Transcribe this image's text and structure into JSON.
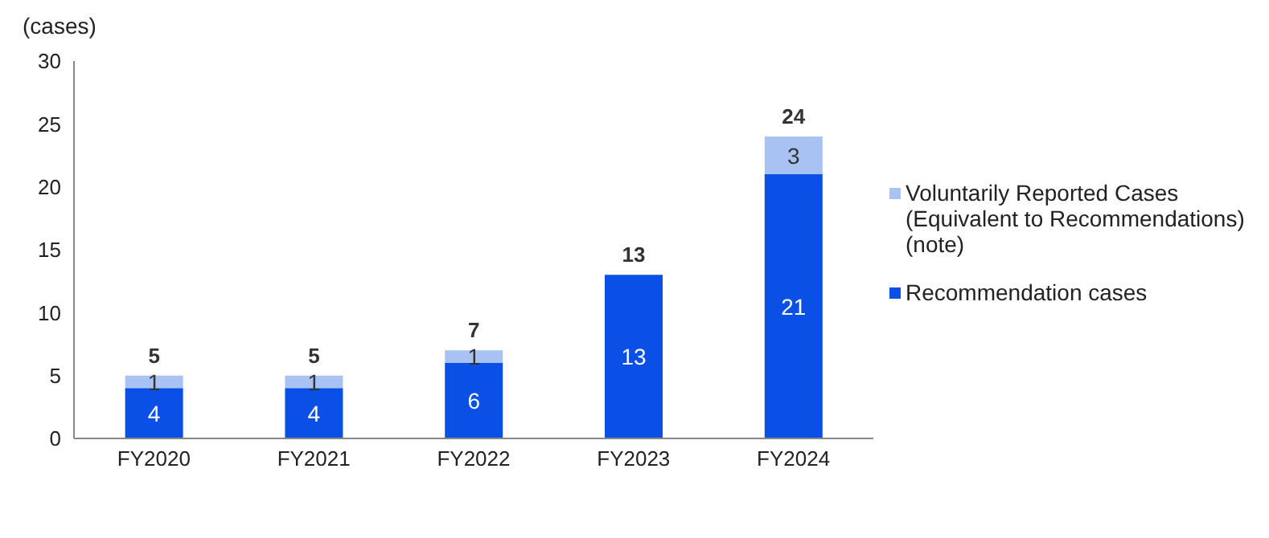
{
  "chart_data": {
    "type": "bar",
    "ylabel": "(cases)",
    "categories": [
      "FY2020",
      "FY2021",
      "FY2022",
      "FY2023",
      "FY2024"
    ],
    "stacked": true,
    "series": [
      {
        "name": "Recommendation cases",
        "color": "#0a50e6",
        "values": [
          4,
          4,
          6,
          13,
          21
        ]
      },
      {
        "name": "Voluntarily Reported Cases (Equivalent to Recommendations)(note)",
        "color": "#a9c2f4",
        "values": [
          1,
          1,
          1,
          null,
          3
        ]
      }
    ],
    "ylim": [
      0,
      30
    ],
    "yticks": [
      0,
      5,
      10,
      15,
      20,
      25,
      30
    ],
    "grid": false,
    "legend": "right",
    "data_labels": true,
    "totals": [
      "5",
      "5",
      "7",
      "13",
      "24"
    ]
  }
}
